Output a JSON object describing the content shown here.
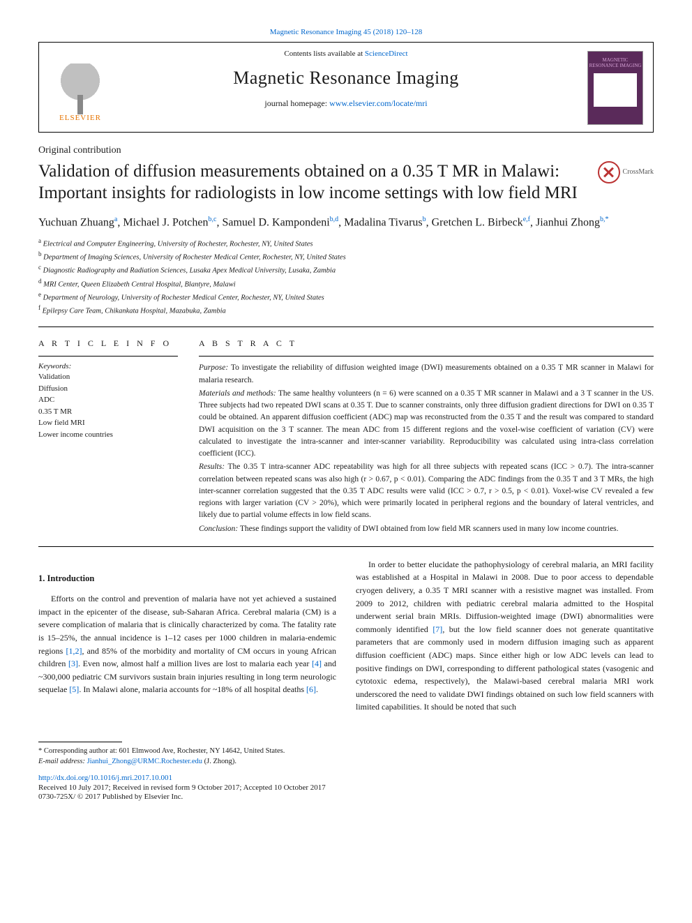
{
  "page_header_link": "Magnetic Resonance Imaging 45 (2018) 120–128",
  "header": {
    "contents_prefix": "Contents lists available at ",
    "contents_link": "ScienceDirect",
    "journal_name": "Magnetic Resonance Imaging",
    "homepage_prefix": "journal homepage: ",
    "homepage_link": "www.elsevier.com/locate/mri",
    "elsevier_brand": "ELSEVIER",
    "cover_title": "MAGNETIC\nRESONANCE\nIMAGING"
  },
  "section_label": "Original contribution",
  "title": "Validation of diffusion measurements obtained on a 0.35 T MR in Malawi: Important insights for radiologists in low income settings with low field MRI",
  "crossmark_label": "CrossMark",
  "authors_html": "Yuchuan Zhuang<sup>a</sup>, Michael J. Potchen<sup>b,c</sup>, Samuel D. Kampondeni<sup>b,d</sup>, Madalina Tivarus<sup>b</sup>, Gretchen L. Birbeck<sup>e,f</sup>, Jianhui Zhong<sup>b,*</sup>",
  "affiliations": [
    {
      "key": "a",
      "text": "Electrical and Computer Engineering, University of Rochester, Rochester, NY, United States"
    },
    {
      "key": "b",
      "text": "Department of Imaging Sciences, University of Rochester Medical Center, Rochester, NY, United States"
    },
    {
      "key": "c",
      "text": "Diagnostic Radiography and Radiation Sciences, Lusaka Apex Medical University, Lusaka, Zambia"
    },
    {
      "key": "d",
      "text": "MRI Center, Queen Elizabeth Central Hospital, Blantyre, Malawi"
    },
    {
      "key": "e",
      "text": "Department of Neurology, University of Rochester Medical Center, Rochester, NY, United States"
    },
    {
      "key": "f",
      "text": "Epilepsy Care Team, Chikankata Hospital, Mazabuka, Zambia"
    }
  ],
  "article_info_heading": "A R T I C L E   I N F O",
  "abstract_heading": "A B S T R A C T",
  "keywords_label": "Keywords:",
  "keywords": [
    "Validation",
    "Diffusion",
    "ADC",
    "0.35 T MR",
    "Low field MRI",
    "Lower income countries"
  ],
  "abstract": {
    "purpose_label": "Purpose:",
    "purpose": " To investigate the reliability of diffusion weighted image (DWI) measurements obtained on a 0.35 T MR scanner in Malawi for malaria research.",
    "materials_label": "Materials and methods:",
    "materials": " The same healthy volunteers (n = 6) were scanned on a 0.35 T MR scanner in Malawi and a 3 T scanner in the US. Three subjects had two repeated DWI scans at 0.35 T. Due to scanner constraints, only three diffusion gradient directions for DWI on 0.35 T could be obtained. An apparent diffusion coefficient (ADC) map was reconstructed from the 0.35 T and the result was compared to standard DWI acquisition on the 3 T scanner. The mean ADC from 15 different regions and the voxel-wise coefficient of variation (CV) were calculated to investigate the intra-scanner and inter-scanner variability. Reproducibility was calculated using intra-class correlation coefficient (ICC).",
    "results_label": "Results:",
    "results": " The 0.35 T intra-scanner ADC repeatability was high for all three subjects with repeated scans (ICC > 0.7). The intra-scanner correlation between repeated scans was also high (r > 0.67, p < 0.01). Comparing the ADC findings from the 0.35 T and 3 T MRs, the high inter-scanner correlation suggested that the 0.35 T ADC results were valid (ICC > 0.7, r > 0.5, p < 0.01). Voxel-wise CV revealed a few regions with larger variation (CV > 20%), which were primarily located in peripheral regions and the boundary of lateral ventricles, and likely due to partial volume effects in low field scans.",
    "conclusion_label": "Conclusion:",
    "conclusion": " These findings support the validity of DWI obtained from low field MR scanners used in many low income countries."
  },
  "intro_heading": "1. Introduction",
  "body": {
    "p1_a": "Efforts on the control and prevention of malaria have not yet achieved a sustained impact in the epicenter of the disease, sub-Saharan Africa. Cerebral malaria (CM) is a severe complication of malaria that is clinically characterized by coma. The fatality rate is 15–25%, the annual incidence is 1–12 cases per 1000 children in malaria-endemic regions ",
    "ref12": "[1,2]",
    "p1_b": ", and 85% of the morbidity and mortality of CM occurs in young African children ",
    "ref3": "[3]",
    "p1_c": ". Even now, almost half a million lives are lost to malaria each year ",
    "ref4": "[4]",
    "p1_d": " and ~300,000 pediatric CM survivors sustain brain injuries resulting in long term neurologic sequelae ",
    "ref5": "[5]",
    "p1_e": ". In Malawi alone, malaria accounts for ~18% of all hospital deaths ",
    "ref6": "[6]",
    "p1_f": ".",
    "p2_a": "In order to better elucidate the pathophysiology of cerebral malaria, an MRI facility was established at a Hospital in Malawi in 2008. Due to poor access to dependable cryogen delivery, a 0.35 T MRI scanner with a resistive magnet was installed. From 2009 to 2012, children with pediatric cerebral malaria admitted to the Hospital underwent serial brain MRIs. Diffusion-weighted image (DWI) abnormalities were commonly identified ",
    "ref7": "[7]",
    "p2_b": ", but the low field scanner does not generate quantitative parameters that are commonly used in modern diffusion imaging such as apparent diffusion coefficient (ADC) maps. Since either high or low ADC levels can lead to positive findings on DWI, corresponding to different pathological states (vasogenic and cytotoxic edema, respectively), the Malawi-based cerebral malaria MRI work underscored the need to validate DWI findings obtained on such low field scanners with limited capabilities. It should be noted that such"
  },
  "footnotes": {
    "corr_label": "* Corresponding author at: 601 Elmwood Ave, Rochester, NY 14642, United States.",
    "email_label": "E-mail address: ",
    "email": "Jianhui_Zhong@URMC.Rochester.edu",
    "email_suffix": " (J. Zhong)."
  },
  "doi": "http://dx.doi.org/10.1016/j.mri.2017.10.001",
  "received": "Received 10 July 2017; Received in revised form 9 October 2017; Accepted 10 October 2017",
  "copyright": "0730-725X/ © 2017 Published by Elsevier Inc.",
  "colors": {
    "link": "#0066cc",
    "elsevier_orange": "#e67300",
    "crossmark_red": "#b33",
    "cover_bg": "#5a2a5a"
  }
}
